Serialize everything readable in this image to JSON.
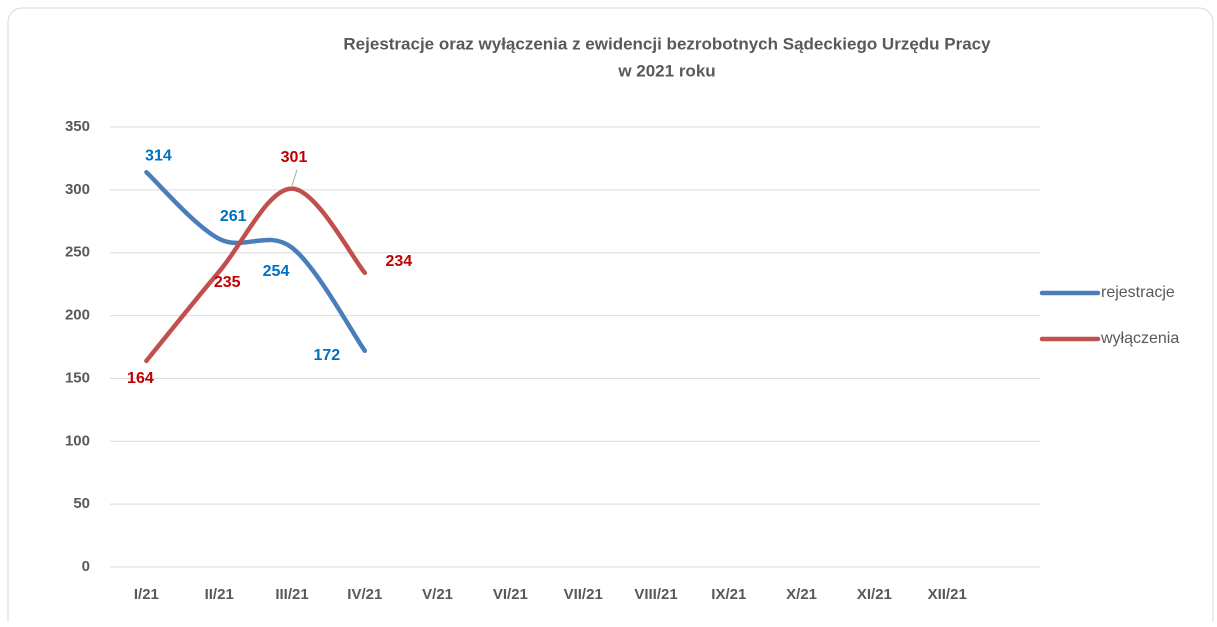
{
  "chart_data": {
    "type": "line",
    "title": [
      "Rejestracje oraz wyłączenia z ewidencji bezrobotnych Sądeckiego Urzędu Pracy",
      "w 2021 roku"
    ],
    "categories": [
      "I/21",
      "II/21",
      "III/21",
      "IV/21",
      "V/21",
      "VI/21",
      "VII/21",
      "VIII/21",
      "IX/21",
      "X/21",
      "XI/21",
      "XII/21"
    ],
    "series": [
      {
        "name": "rejestracje",
        "color": "#4a7ebb",
        "label_color": "#0070c0",
        "values": [
          314,
          261,
          254,
          172,
          null,
          null,
          null,
          null,
          null,
          null,
          null,
          null
        ]
      },
      {
        "name": "wyłączenia",
        "color": "#c0504d",
        "label_color": "#c00000",
        "values": [
          164,
          235,
          301,
          234,
          null,
          null,
          null,
          null,
          null,
          null,
          null,
          null
        ]
      }
    ],
    "ylim": [
      0,
      350
    ],
    "yticks": [
      0,
      50,
      100,
      150,
      200,
      250,
      300,
      350
    ],
    "grid": true,
    "smooth": true,
    "legend": "right"
  }
}
